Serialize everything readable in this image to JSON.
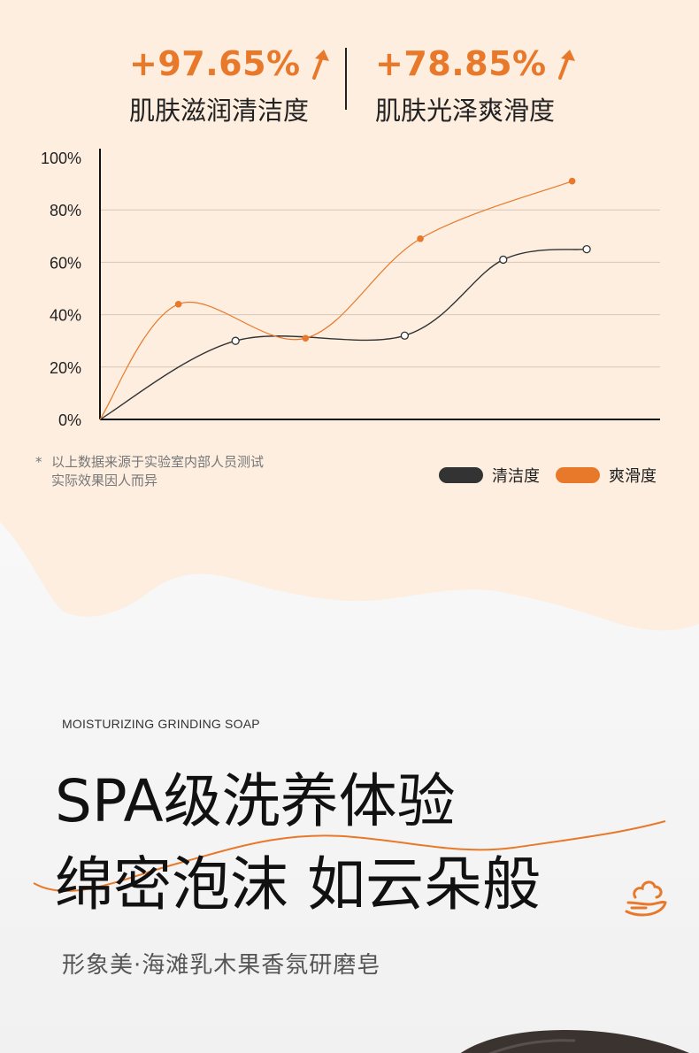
{
  "stats": [
    {
      "value": "+97.65%",
      "label": "肌肤滋润清洁度"
    },
    {
      "value": "+78.85%",
      "label": "肌肤光泽爽滑度"
    }
  ],
  "colors": {
    "accent": "#e8792a",
    "dark": "#333333",
    "peach_bg": "#fdeee0",
    "grid": "#d8c6b4"
  },
  "icons": {
    "arrow": "up-arrow-icon",
    "foam": "foam-hand-icon"
  },
  "note": {
    "star": "*",
    "line1": "以上数据来源于实验室内部人员测试",
    "line2": "实际效果因人而异"
  },
  "legend": [
    {
      "label": "清洁度",
      "color": "#333333"
    },
    {
      "label": "爽滑度",
      "color": "#e8792a"
    }
  ],
  "chart_data": {
    "type": "line",
    "y_ticks": [
      "0%",
      "20%",
      "40%",
      "60%",
      "80%",
      "100%"
    ],
    "ylim": [
      0,
      100
    ],
    "xlim": [
      0,
      100
    ],
    "grid": true,
    "legend_position": "bottom-right",
    "series": [
      {
        "name": "清洁度",
        "color": "#333333",
        "marker": "hollow-circle",
        "x": [
          24.2,
          54.4,
          72.0,
          86.9
        ],
        "values": [
          30,
          32,
          61,
          65
        ]
      },
      {
        "name": "爽滑度",
        "color": "#e8792a",
        "marker": "filled-dot",
        "x": [
          14.0,
          36.7,
          57.2,
          84.3
        ],
        "values": [
          44,
          31,
          69,
          91
        ]
      }
    ]
  },
  "eyebrow": "MOISTURIZING GRINDING SOAP",
  "headline": {
    "line1": "SPA级洗养体验",
    "line2": "绵密泡沫 如云朵般"
  },
  "subline": "形象美·海滩乳木果香氛研磨皂"
}
